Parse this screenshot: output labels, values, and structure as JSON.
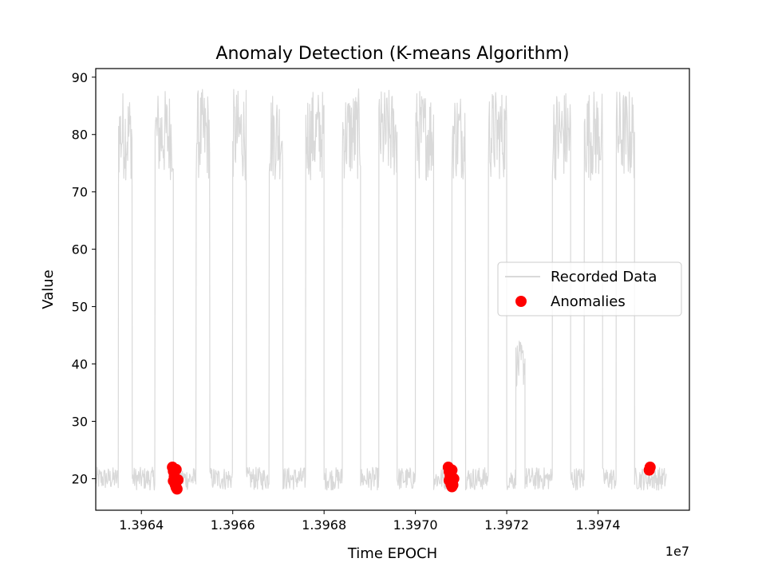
{
  "chart_data": {
    "type": "line",
    "title": "Anomaly Detection (K-means Algorithm)",
    "xlabel": "Time EPOCH",
    "ylabel": "Value",
    "x_offset_label": "1e7",
    "xlim": [
      1.3963,
      1.3976
    ],
    "ylim": [
      14.5,
      91.5
    ],
    "x_ticks": [
      1.3964,
      1.3966,
      1.3968,
      1.397,
      1.3972,
      1.3974
    ],
    "x_tick_labels": [
      "1.3964",
      "1.3966",
      "1.3968",
      "1.3970",
      "1.3972",
      "1.3974"
    ],
    "y_ticks": [
      20,
      30,
      40,
      50,
      60,
      70,
      80,
      90
    ],
    "y_tick_labels": [
      "20",
      "30",
      "40",
      "50",
      "60",
      "70",
      "80",
      "90"
    ],
    "grid": false,
    "legend_position": "center-right",
    "series": [
      {
        "name": "Recorded Data",
        "kind": "line",
        "color": "#d9d9d9",
        "segments": [
          {
            "x_start": 1.3963,
            "x_end": 1.39635,
            "low": 18.0,
            "high": 22.0
          },
          {
            "x_start": 1.39635,
            "x_end": 1.39638,
            "low": 72.0,
            "high": 88.0
          },
          {
            "x_start": 1.39638,
            "x_end": 1.39643,
            "low": 18.0,
            "high": 22.0
          },
          {
            "x_start": 1.39643,
            "x_end": 1.39647,
            "low": 72.0,
            "high": 88.0
          },
          {
            "x_start": 1.39647,
            "x_end": 1.39652,
            "low": 18.0,
            "high": 22.0
          },
          {
            "x_start": 1.39652,
            "x_end": 1.39655,
            "low": 72.0,
            "high": 88.0
          },
          {
            "x_start": 1.39655,
            "x_end": 1.3966,
            "low": 18.0,
            "high": 22.0
          },
          {
            "x_start": 1.3966,
            "x_end": 1.39663,
            "low": 72.0,
            "high": 88.0
          },
          {
            "x_start": 1.39663,
            "x_end": 1.39668,
            "low": 18.0,
            "high": 22.0
          },
          {
            "x_start": 1.39668,
            "x_end": 1.39671,
            "low": 72.0,
            "high": 88.0
          },
          {
            "x_start": 1.39671,
            "x_end": 1.39676,
            "low": 18.0,
            "high": 22.0
          },
          {
            "x_start": 1.39676,
            "x_end": 1.3968,
            "low": 72.0,
            "high": 88.0
          },
          {
            "x_start": 1.3968,
            "x_end": 1.39684,
            "low": 18.0,
            "high": 22.0
          },
          {
            "x_start": 1.39684,
            "x_end": 1.39688,
            "low": 72.0,
            "high": 88.0
          },
          {
            "x_start": 1.39688,
            "x_end": 1.39692,
            "low": 18.0,
            "high": 22.0
          },
          {
            "x_start": 1.39692,
            "x_end": 1.39696,
            "low": 72.0,
            "high": 88.0
          },
          {
            "x_start": 1.39696,
            "x_end": 1.397,
            "low": 18.0,
            "high": 22.0
          },
          {
            "x_start": 1.397,
            "x_end": 1.39704,
            "low": 72.0,
            "high": 88.0
          },
          {
            "x_start": 1.39704,
            "x_end": 1.39708,
            "low": 18.0,
            "high": 22.0
          },
          {
            "x_start": 1.39708,
            "x_end": 1.39711,
            "low": 72.0,
            "high": 88.0
          },
          {
            "x_start": 1.39711,
            "x_end": 1.39716,
            "low": 18.0,
            "high": 22.0
          },
          {
            "x_start": 1.39716,
            "x_end": 1.3972,
            "low": 72.0,
            "high": 88.0
          },
          {
            "x_start": 1.3972,
            "x_end": 1.39722,
            "low": 18.0,
            "high": 22.0
          },
          {
            "x_start": 1.39722,
            "x_end": 1.39724,
            "low": 36.0,
            "high": 44.0
          },
          {
            "x_start": 1.39724,
            "x_end": 1.3973,
            "low": 18.0,
            "high": 22.0
          },
          {
            "x_start": 1.3973,
            "x_end": 1.39734,
            "low": 72.0,
            "high": 88.0
          },
          {
            "x_start": 1.39734,
            "x_end": 1.39737,
            "low": 18.0,
            "high": 22.0
          },
          {
            "x_start": 1.39737,
            "x_end": 1.39741,
            "low": 72.0,
            "high": 88.0
          },
          {
            "x_start": 1.39741,
            "x_end": 1.39744,
            "low": 18.0,
            "high": 22.0
          },
          {
            "x_start": 1.39744,
            "x_end": 1.39748,
            "low": 72.0,
            "high": 88.0
          },
          {
            "x_start": 1.39748,
            "x_end": 1.39752,
            "low": 18.0,
            "high": 22.0
          },
          {
            "x_start": 1.39752,
            "x_end": 1.39755,
            "low": 18.0,
            "high": 22.0
          }
        ]
      },
      {
        "name": "Anomalies",
        "kind": "scatter",
        "color": "#ff0000",
        "points": [
          {
            "x": 1.396468,
            "y": 22.0
          },
          {
            "x": 1.39647,
            "y": 21.3
          },
          {
            "x": 1.396472,
            "y": 20.4
          },
          {
            "x": 1.39647,
            "y": 19.6
          },
          {
            "x": 1.396474,
            "y": 19.0
          },
          {
            "x": 1.396476,
            "y": 18.5
          },
          {
            "x": 1.396478,
            "y": 18.2
          },
          {
            "x": 1.39648,
            "y": 19.8
          },
          {
            "x": 1.396476,
            "y": 21.6
          },
          {
            "x": 1.397072,
            "y": 22.0
          },
          {
            "x": 1.397074,
            "y": 21.2
          },
          {
            "x": 1.397076,
            "y": 20.5
          },
          {
            "x": 1.397074,
            "y": 19.7
          },
          {
            "x": 1.397078,
            "y": 19.0
          },
          {
            "x": 1.39708,
            "y": 18.6
          },
          {
            "x": 1.397082,
            "y": 18.9
          },
          {
            "x": 1.397084,
            "y": 20.0
          },
          {
            "x": 1.39708,
            "y": 21.5
          },
          {
            "x": 1.397512,
            "y": 21.5
          },
          {
            "x": 1.397514,
            "y": 22.0
          }
        ]
      }
    ]
  }
}
